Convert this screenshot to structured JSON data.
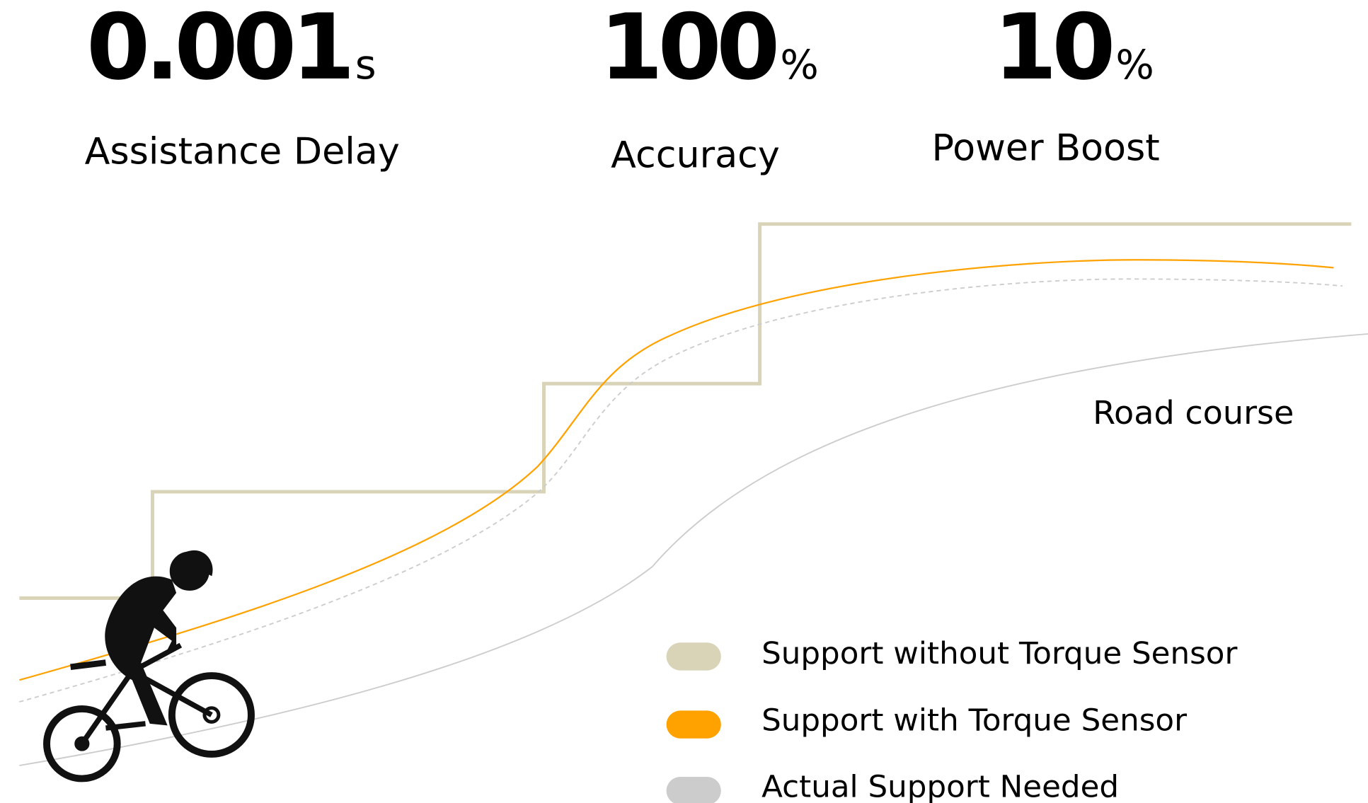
{
  "stats": [
    {
      "value": "0.001",
      "unit": "s",
      "label": "Assistance Delay"
    },
    {
      "value": "100",
      "unit": "%",
      "label": "Accuracy"
    },
    {
      "value": "10",
      "unit": "%",
      "label": "Power Boost"
    }
  ],
  "annotation": "Road course",
  "legend": [
    {
      "name": "Support without Torque Sensor",
      "color": "#d9d3b7"
    },
    {
      "name": "Support with Torque Sensor",
      "color": "#ffa200"
    },
    {
      "name": "Actual Support Needed",
      "color": "#cccccc"
    }
  ]
}
